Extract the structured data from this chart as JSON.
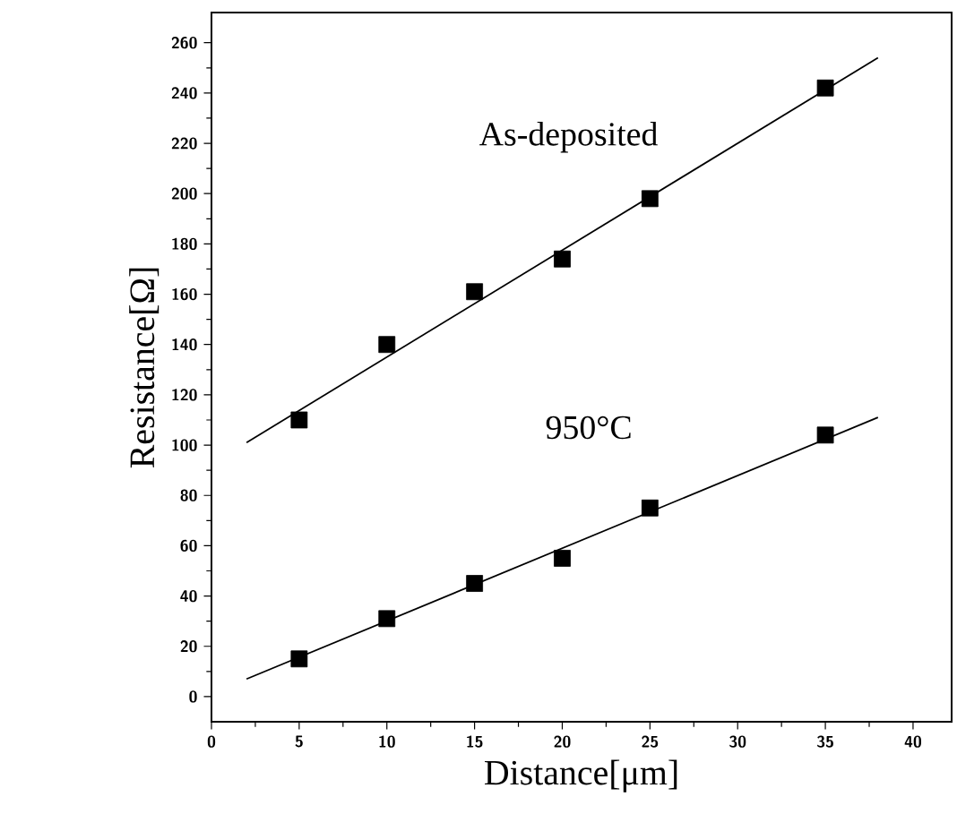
{
  "chart_data": {
    "type": "scatter",
    "xlabel": "Distance[μm]",
    "ylabel": "Resistance[Ω]",
    "xlim": [
      0,
      42.2
    ],
    "ylim": [
      -10,
      272
    ],
    "xticks": [
      0,
      5,
      10,
      15,
      20,
      25,
      30,
      35,
      40
    ],
    "yticks": [
      0,
      20,
      40,
      60,
      80,
      100,
      120,
      140,
      160,
      180,
      200,
      220,
      240,
      260
    ],
    "marker": "square",
    "series": [
      {
        "name": "As-deposited",
        "color": "#000000",
        "x": [
          5,
          10,
          15,
          20,
          25,
          35
        ],
        "values": [
          110,
          140,
          161,
          174,
          198,
          242
        ]
      },
      {
        "name": "950°C",
        "color": "#000000",
        "x": [
          5,
          10,
          15,
          20,
          25,
          35
        ],
        "values": [
          15,
          31,
          45,
          55,
          75,
          104
        ]
      },
      {
        "type": "line",
        "marker": "none",
        "color": "#000000",
        "x": [
          2,
          38
        ],
        "values": [
          101,
          254
        ]
      },
      {
        "type": "line",
        "marker": "none",
        "color": "#000000",
        "x": [
          2,
          38
        ],
        "values": [
          7,
          111
        ]
      }
    ]
  }
}
